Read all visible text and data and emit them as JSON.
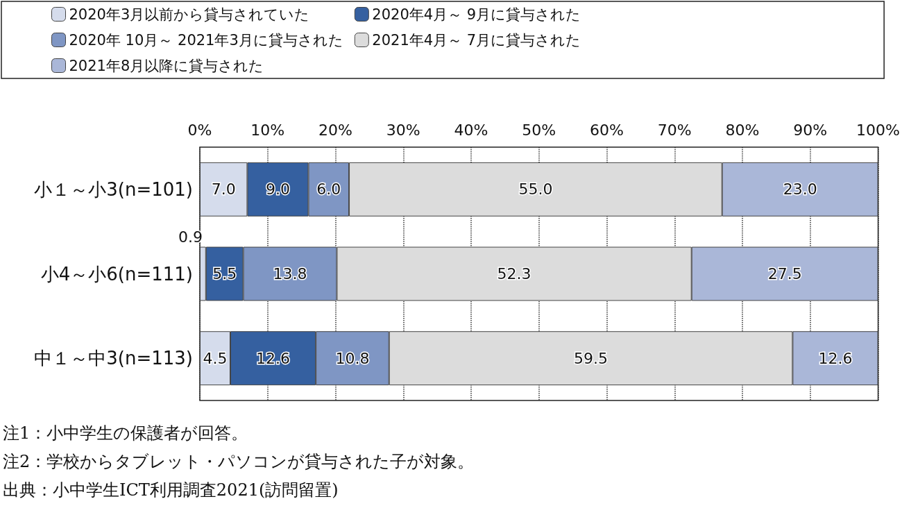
{
  "chart_data": {
    "type": "bar",
    "orientation": "horizontal",
    "stacked": true,
    "grid": "x",
    "legend": "top",
    "categories": [
      "小１～小3(n=101)",
      "小4～小6(n=111)",
      "中１～中3(n=113)"
    ],
    "series": [
      {
        "name": "2020年3月以前から貸与されていた",
        "color": "#d5dcec",
        "values": [
          7.0,
          0.9,
          4.5
        ],
        "value_labels": [
          "7.0",
          "0.9",
          "4.5"
        ]
      },
      {
        "name": "2020年4月～ 9月に貸与された",
        "color": "#3560a0",
        "values": [
          9.0,
          5.5,
          12.6
        ],
        "value_labels": [
          "9.0",
          "5.5",
          "12.6"
        ]
      },
      {
        "name": "2020年 10月～ 2021年3月に貸与された",
        "color": "#7f96c4",
        "values": [
          6.0,
          13.8,
          10.8
        ],
        "value_labels": [
          "6.0",
          "13.8",
          "10.8"
        ]
      },
      {
        "name": "2021年4月～ 7月に貸与された",
        "color": "#dcdcdc",
        "values": [
          55.0,
          52.3,
          59.5
        ],
        "value_labels": [
          "55.0",
          "52.3",
          "59.5"
        ]
      },
      {
        "name": "2021年8月以降に貸与された",
        "color": "#aab7d8",
        "values": [
          23.0,
          27.5,
          12.6
        ],
        "value_labels": [
          "23.0",
          "27.5",
          "12.6"
        ]
      }
    ],
    "xlim": [
      0,
      100
    ],
    "xticks": [
      {
        "value": 0,
        "label": "0%"
      },
      {
        "value": 10,
        "label": "10%"
      },
      {
        "value": 20,
        "label": "20%"
      },
      {
        "value": 30,
        "label": "30%"
      },
      {
        "value": 40,
        "label": "40%"
      },
      {
        "value": 50,
        "label": "50%"
      },
      {
        "value": 60,
        "label": "60%"
      },
      {
        "value": 70,
        "label": "70%"
      },
      {
        "value": 80,
        "label": "80%"
      },
      {
        "value": 90,
        "label": "90%"
      },
      {
        "value": 100,
        "label": "100%"
      }
    ],
    "annotations": [
      "注1：小中学生の保護者が回答。",
      "注2：学校からタブレット・パソコンが貸与された子が対象。",
      "出典：小中学生ICT利用調査2021(訪問留置)"
    ]
  }
}
